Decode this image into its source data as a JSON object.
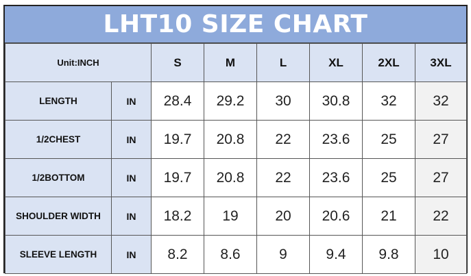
{
  "title": "LHT10 SIZE CHART",
  "unit_label": "Unit:INCH",
  "sizes": [
    "S",
    "M",
    "L",
    "XL",
    "2XL",
    "3XL"
  ],
  "rows": [
    {
      "label": "LENGTH",
      "unit": "IN",
      "values": [
        "28.4",
        "29.2",
        "30",
        "30.8",
        "32",
        "32"
      ]
    },
    {
      "label": "1/2CHEST",
      "unit": "IN",
      "values": [
        "19.7",
        "20.8",
        "22",
        "23.6",
        "25",
        "27"
      ]
    },
    {
      "label": "1/2BOTTOM",
      "unit": "IN",
      "values": [
        "19.7",
        "20.8",
        "22",
        "23.6",
        "25",
        "27"
      ]
    },
    {
      "label": "SHOULDER WIDTH",
      "unit": "IN",
      "values": [
        "18.2",
        "19",
        "20",
        "20.6",
        "21",
        "22"
      ]
    },
    {
      "label": "SLEEVE LENGTH",
      "unit": "IN",
      "values": [
        "8.2",
        "8.6",
        "9",
        "9.4",
        "9.8",
        "10"
      ]
    }
  ],
  "colors": {
    "header_bg": "#8eaadb",
    "label_bg": "#dae3f3",
    "last_col_bg": "#f2f2f2"
  }
}
